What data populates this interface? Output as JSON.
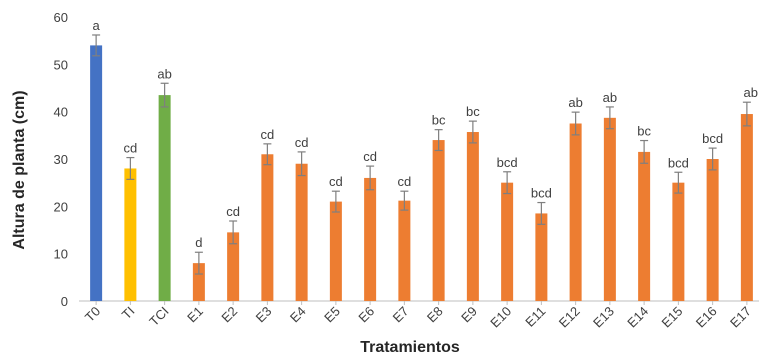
{
  "chart_data": {
    "type": "bar",
    "xlabel": "Tratamientos",
    "ylabel": "Altura de planta (cm)",
    "ylim": [
      0,
      60
    ],
    "yticks": [
      0,
      10,
      20,
      30,
      40,
      50,
      60
    ],
    "grid": false,
    "legend": "none",
    "categories": [
      "T0",
      "TI",
      "TCI",
      "E1",
      "E2",
      "E3",
      "E4",
      "E5",
      "E6",
      "E7",
      "E8",
      "E9",
      "E10",
      "E11",
      "E12",
      "E13",
      "E14",
      "E15",
      "E16",
      "E17"
    ],
    "values": [
      54,
      28,
      43.5,
      8,
      14.5,
      31,
      29,
      21,
      26,
      21.2,
      34,
      35.7,
      25,
      18.5,
      37.5,
      38.7,
      31.5,
      25,
      30,
      39.5
    ],
    "errors": [
      2.2,
      2.3,
      2.5,
      2.3,
      2.4,
      2.2,
      2.5,
      2.2,
      2.5,
      2.0,
      2.2,
      2.3,
      2.3,
      2.3,
      2.4,
      2.3,
      2.4,
      2.2,
      2.3,
      2.5
    ],
    "significance": [
      "a",
      "cd",
      "ab",
      "d",
      "cd",
      "cd",
      "cd",
      "cd",
      "cd",
      "cd",
      "bc",
      "bc",
      "bcd",
      "bcd",
      "ab",
      "ab",
      "bc",
      "bcd",
      "bcd",
      "ab"
    ],
    "bar_colors": [
      "#4472C4",
      "#FFC000",
      "#70AD47",
      "#ED7D31",
      "#ED7D31",
      "#ED7D31",
      "#ED7D31",
      "#ED7D31",
      "#ED7D31",
      "#ED7D31",
      "#ED7D31",
      "#ED7D31",
      "#ED7D31",
      "#ED7D31",
      "#ED7D31",
      "#ED7D31",
      "#ED7D31",
      "#ED7D31",
      "#ED7D31",
      "#ED7D31"
    ],
    "axis_color": "#bfbfbf",
    "error_bar_color": "#7f7f7f"
  }
}
